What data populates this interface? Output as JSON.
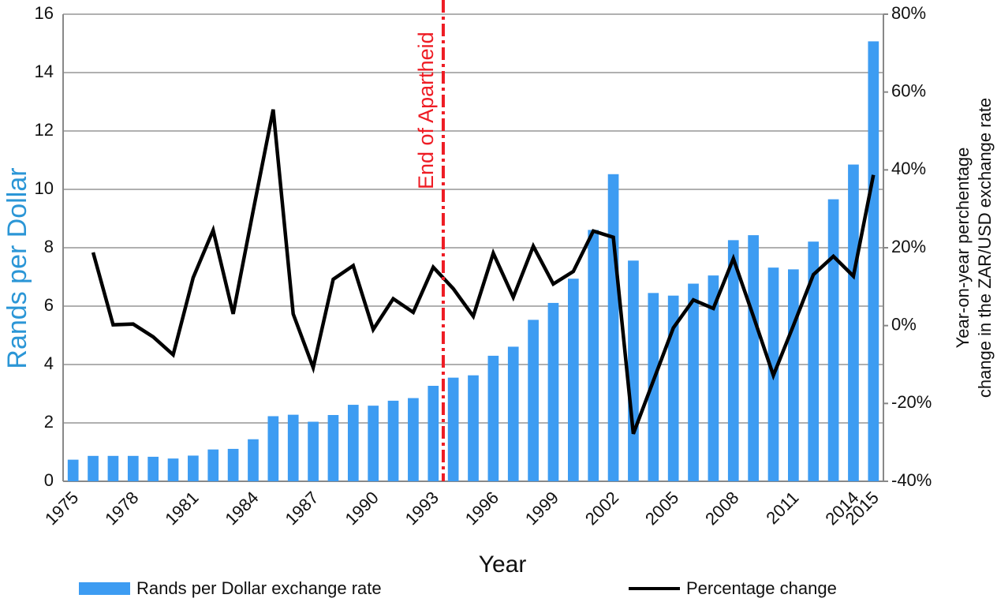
{
  "chart_data": {
    "type": "bar_line",
    "x_label": "Year",
    "y_label": "Rands per Dollar",
    "y2_label": [
      "Year-on-year perchentage",
      "change in the ZAR/USD exchange rate"
    ],
    "annotation": "End of Apartheid",
    "categories": [
      "1975",
      null,
      null,
      "1978",
      null,
      null,
      "1981",
      null,
      null,
      "1984",
      null,
      null,
      "1987",
      null,
      null,
      "1990",
      null,
      null,
      "1993",
      null,
      null,
      "1996",
      null,
      null,
      "1999",
      null,
      null,
      "2002",
      null,
      null,
      "2005",
      null,
      null,
      "2008",
      null,
      null,
      "2011",
      null,
      null,
      "2014",
      "2015"
    ],
    "series": [
      {
        "name": "Rands per Dollar exchange rate",
        "color": "#3d9cf2",
        "kind": "bar",
        "values": [
          0.74,
          0.87,
          0.87,
          0.87,
          0.84,
          0.78,
          0.88,
          1.09,
          1.11,
          1.44,
          2.23,
          2.28,
          2.04,
          2.27,
          2.62,
          2.59,
          2.76,
          2.85,
          3.27,
          3.55,
          3.63,
          4.3,
          4.61,
          5.53,
          6.11,
          6.94,
          8.61,
          10.52,
          7.56,
          6.45,
          6.36,
          6.77,
          7.05,
          8.26,
          8.43,
          7.32,
          7.26,
          8.21,
          9.66,
          10.85,
          15.07
        ]
      },
      {
        "name": "Percentage change",
        "color": "#000000",
        "kind": "line",
        "axis": "y2",
        "values": [
          null,
          18.8,
          0.2,
          0.4,
          -2.9,
          -7.5,
          12.3,
          24.5,
          3.0,
          29.5,
          55.5,
          3.0,
          -10.8,
          11.9,
          15.4,
          -1.0,
          6.9,
          3.4,
          15.0,
          9.5,
          2.4,
          18.6,
          7.3,
          20.4,
          10.7,
          13.9,
          24.3,
          22.7,
          -27.8,
          -14.2,
          -0.6,
          6.6,
          4.4,
          17.2,
          2.4,
          -12.8,
          0.0,
          13.1,
          17.8,
          12.7,
          38.7
        ]
      }
    ],
    "ylim": [
      0,
      16
    ],
    "yticks": [
      0,
      2,
      4,
      6,
      8,
      10,
      12,
      14,
      16
    ],
    "y2lim": [
      -40,
      80
    ],
    "y2ticks": [
      {
        "value": -40,
        "label": "-40%"
      },
      {
        "value": -20,
        "label": "-20%"
      },
      {
        "value": 0,
        "label": "0%"
      },
      {
        "value": 20,
        "label": "20%"
      },
      {
        "value": 40,
        "label": "40%"
      },
      {
        "value": 60,
        "label": "60%"
      },
      {
        "value": 80,
        "label": "80%"
      }
    ],
    "grid": true,
    "legend": "bottom"
  }
}
